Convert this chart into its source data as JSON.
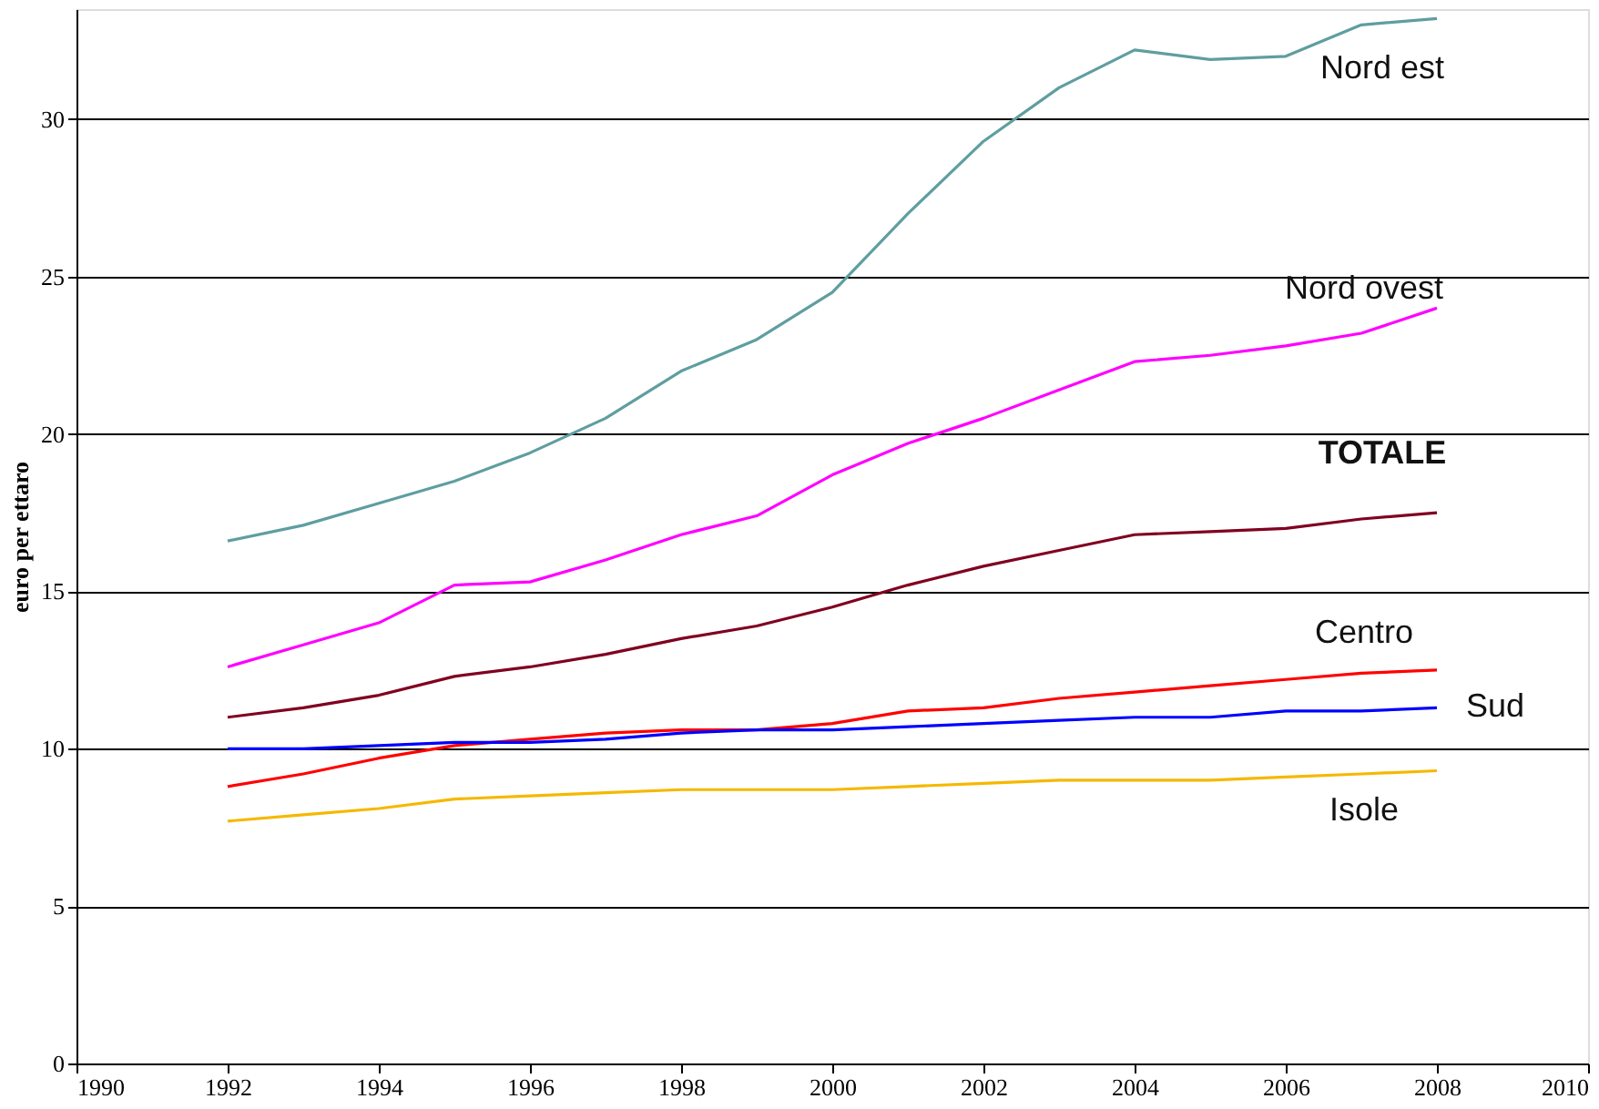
{
  "chart_data": {
    "type": "line",
    "ylabel": "euro per ettaro",
    "x": [
      1992,
      1993,
      1994,
      1995,
      1996,
      1997,
      1998,
      1999,
      2000,
      2001,
      2002,
      2003,
      2004,
      2005,
      2006,
      2007,
      2008
    ],
    "series": [
      {
        "name": "Nord est",
        "color": "#5f9ea0",
        "values": [
          16.6,
          17.1,
          17.8,
          18.5,
          19.4,
          20.5,
          22.0,
          23.0,
          24.5,
          27.0,
          29.3,
          31.0,
          32.2,
          31.9,
          32.0,
          33.0,
          33.2
        ]
      },
      {
        "name": "Nord ovest",
        "color": "#ff00ff",
        "values": [
          12.6,
          13.3,
          14.0,
          15.2,
          15.3,
          16.0,
          16.8,
          17.4,
          18.7,
          19.7,
          20.5,
          21.4,
          22.3,
          22.5,
          22.8,
          23.2,
          24.0
        ]
      },
      {
        "name": "TOTALE",
        "color": "#800020",
        "values": [
          11.0,
          11.3,
          11.7,
          12.3,
          12.6,
          13.0,
          13.5,
          13.9,
          14.5,
          15.2,
          15.8,
          16.3,
          16.8,
          16.9,
          17.0,
          17.3,
          17.5
        ]
      },
      {
        "name": "Centro",
        "color": "#ff0000",
        "values": [
          8.8,
          9.2,
          9.7,
          10.1,
          10.3,
          10.5,
          10.6,
          10.6,
          10.8,
          11.2,
          11.3,
          11.6,
          11.8,
          12.0,
          12.2,
          12.4,
          12.5
        ]
      },
      {
        "name": "Sud",
        "color": "#0000ff",
        "values": [
          10.0,
          10.0,
          10.1,
          10.2,
          10.2,
          10.3,
          10.5,
          10.6,
          10.6,
          10.7,
          10.8,
          10.9,
          11.0,
          11.0,
          11.2,
          11.2,
          11.3
        ]
      },
      {
        "name": "Isole",
        "color": "#f5b800",
        "values": [
          7.7,
          7.9,
          8.1,
          8.4,
          8.5,
          8.6,
          8.7,
          8.7,
          8.7,
          8.8,
          8.9,
          9.0,
          9.0,
          9.0,
          9.1,
          9.2,
          9.3
        ]
      }
    ],
    "xlim": [
      1990,
      2010
    ],
    "xticks": [
      1990,
      1992,
      1994,
      1996,
      1998,
      2000,
      2002,
      2004,
      2006,
      2008,
      2010
    ],
    "ylim": [
      0,
      33.5
    ],
    "yticks": [
      0,
      5,
      10,
      15,
      20,
      25,
      30
    ],
    "grid": "y",
    "legend": false,
    "marker": "none",
    "line_style": "solid"
  }
}
